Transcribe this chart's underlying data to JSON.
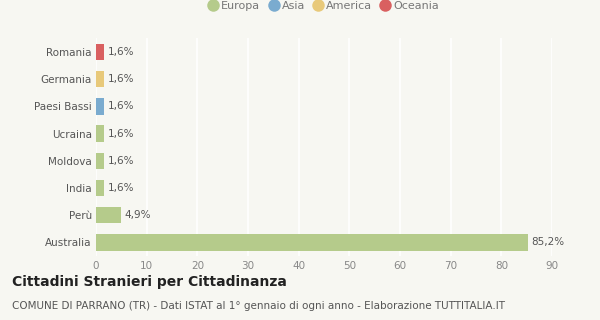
{
  "categories": [
    "Romania",
    "Germania",
    "Paesi Bassi",
    "Ucraina",
    "Moldova",
    "India",
    "Perù",
    "Australia"
  ],
  "values": [
    85.2,
    4.9,
    1.6,
    1.6,
    1.6,
    1.6,
    1.6,
    1.6
  ],
  "labels": [
    "85,2%",
    "4,9%",
    "1,6%",
    "1,6%",
    "1,6%",
    "1,6%",
    "1,6%",
    "1,6%"
  ],
  "colors": [
    "#b5cb8b",
    "#b5cb8b",
    "#b5cb8b",
    "#b5cb8b",
    "#b5cb8b",
    "#7aabcf",
    "#e8c97a",
    "#d96060"
  ],
  "legend_labels": [
    "Europa",
    "Asia",
    "America",
    "Oceania"
  ],
  "legend_colors": [
    "#b5cb8b",
    "#7aabcf",
    "#e8c97a",
    "#d96060"
  ],
  "xlim": [
    0,
    90
  ],
  "xticks": [
    0,
    10,
    20,
    30,
    40,
    50,
    60,
    70,
    80,
    90
  ],
  "title": "Cittadini Stranieri per Cittadinanza",
  "subtitle": "COMUNE DI PARRANO (TR) - Dati ISTAT al 1° gennaio di ogni anno - Elaborazione TUTTITALIA.IT",
  "bg_color": "#f7f7f2",
  "grid_color": "#ffffff",
  "bar_height": 0.6,
  "title_fontsize": 10,
  "subtitle_fontsize": 7.5,
  "label_fontsize": 7.5,
  "tick_fontsize": 7.5,
  "legend_fontsize": 8
}
